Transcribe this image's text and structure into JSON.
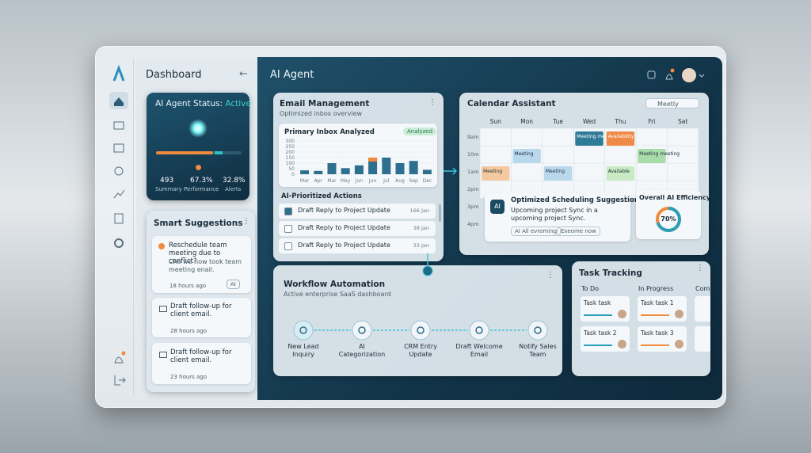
{
  "header": {
    "title": "AI Agent"
  },
  "sidebar": {
    "title": "Dashboard"
  },
  "agent_status": {
    "label": "AI Agent Status:",
    "status": "Active",
    "stats": [
      {
        "value": "493",
        "label": "Summary"
      },
      {
        "value": "67.3%",
        "label": "Performance"
      },
      {
        "value": "32.8%",
        "label": "Alerts"
      }
    ]
  },
  "suggestions": {
    "title": "Smart Suggestions",
    "items": [
      {
        "title": "Reschedule team meeting due to conflict?",
        "body": "Che we now took team meeting enail.",
        "time": "18 hours ago",
        "tag": "AI"
      },
      {
        "title": "Draft follow-up for client email.",
        "time": "28 hours ago"
      },
      {
        "title": "Draft follow-up for client email.",
        "time": "23 hours ago"
      }
    ]
  },
  "email": {
    "title": "Email Management",
    "subtitle": "Optimized inbox overview",
    "badge": "Analyzed",
    "chart_data": {
      "type": "bar",
      "title": "Primary Inbox Analyzed",
      "categories": [
        "Mar",
        "Apr",
        "Mar",
        "May",
        "Jun",
        "Jun",
        "Jul",
        "Aug",
        "Sep",
        "Dec"
      ],
      "values": [
        35,
        30,
        100,
        55,
        80,
        150,
        150,
        100,
        120,
        40
      ],
      "color": "#2d6f8e",
      "highlight_index": 5,
      "highlight_color": "#f08a3c",
      "ylim": [
        0,
        300
      ],
      "yticks": [
        0,
        50,
        100,
        150,
        200,
        250,
        300
      ]
    },
    "actions_title": "AI-Prioritized Actions",
    "actions": [
      {
        "label": "Draft Reply to Project Update",
        "date": "166 Jan",
        "checked": true
      },
      {
        "label": "Draft Reply to Project Update",
        "date": "38 Jan",
        "checked": false
      },
      {
        "label": "Draft Reply to Project Update",
        "date": "33 Jan",
        "checked": false
      }
    ]
  },
  "calendar": {
    "title": "Calendar Assistant",
    "view": "Meetly",
    "days": [
      "Sun",
      "Mon",
      "Tue",
      "Wed",
      "Thu",
      "Fri",
      "Sat"
    ],
    "times": [
      "9am",
      "10m",
      "1am",
      "2pm",
      "3pm",
      "4pm"
    ],
    "events": [
      {
        "label": "Meeting",
        "day": "Sun",
        "time": "1am",
        "color": "#f4c9a0"
      },
      {
        "label": "Meeting",
        "day": "Mon",
        "time": "10m",
        "color": "#b9d8ec"
      },
      {
        "label": "Meeting",
        "day": "Tue",
        "time": "1am",
        "color": "#b9d8ec"
      },
      {
        "label": "Meeting meeting",
        "day": "Wed",
        "time": "9am",
        "color": "#2f7a96"
      },
      {
        "label": "Availability",
        "day": "Thu",
        "time": "9am",
        "color": "#ee8a45"
      },
      {
        "label": "Meeting meeting",
        "day": "Fri",
        "time": "10m",
        "color": "#a8dca8"
      },
      {
        "label": "Available",
        "day": "Thu",
        "time": "1am",
        "color": "#c8ebc3"
      }
    ]
  },
  "scheduling": {
    "title": "Optimized Scheduling Suggestions",
    "body": "Upcoming project Sync in a upcoming project Sync.",
    "buttons": [
      "AI All evroming",
      "Exeome now"
    ]
  },
  "efficiency": {
    "title": "Overall AI Efficiency",
    "value": {
      "value": 70,
      "label": "70%"
    },
    "color": "#2a9fb8",
    "accent": "#f08a3c"
  },
  "workflow": {
    "title": "Workflow Automation",
    "subtitle": "Active enterprise SaaS dashboard",
    "steps": [
      "New Lead Inquiry",
      "AI Categorization",
      "CRM Entry Update",
      "Draft Welcome Email",
      "Notify Sales Team"
    ]
  },
  "tasks": {
    "title": "Task Tracking",
    "columns": [
      {
        "name": "To Do",
        "items": [
          "Task task",
          "Task task 2"
        ]
      },
      {
        "name": "In Progress",
        "items": [
          "Task task 1",
          "Task task 3"
        ]
      },
      {
        "name": "Comp",
        "items": []
      }
    ]
  }
}
